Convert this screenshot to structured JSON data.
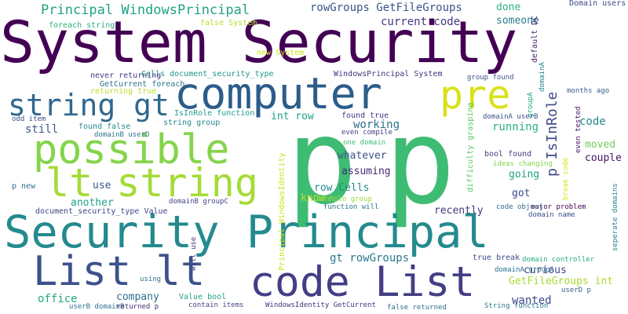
{
  "words": [
    {
      "text": "System Security",
      "color": "#440154"
    },
    {
      "text": "p",
      "color": "#3fbc73"
    },
    {
      "text": "p",
      "color": "#3fbc73"
    },
    {
      "text": "computer",
      "color": "#2c5c8b"
    },
    {
      "text": "pre",
      "color": "#d8e219"
    },
    {
      "text": "possible",
      "color": "#84d44b"
    },
    {
      "text": "string gt",
      "color": "#31688e"
    },
    {
      "text": "lt string",
      "color": "#a5db36"
    },
    {
      "text": "Security Principal",
      "color": "#238a8d"
    },
    {
      "text": "List lt",
      "color": "#3b528b"
    },
    {
      "text": "code List",
      "color": "#433e85"
    },
    {
      "text": "Principal WindowsPrincipal",
      "color": "#20a386"
    },
    {
      "text": "rowGroups GetFileGroups",
      "color": "#39568c"
    },
    {
      "text": "done",
      "color": "#2db27d"
    },
    {
      "text": "someone",
      "color": "#287d8e"
    },
    {
      "text": "current code",
      "color": "#453781"
    },
    {
      "text": "Domain users",
      "color": "#3e4a89"
    },
    {
      "text": "default DC",
      "color": "#482475"
    },
    {
      "text": "domainA",
      "color": "#25858e"
    },
    {
      "text": "foreach string",
      "color": "#2ab07f"
    },
    {
      "text": "false System",
      "color": "#b5de2b"
    },
    {
      "text": "new System",
      "color": "#d0e11c"
    },
    {
      "text": "Cells document_security_type",
      "color": "#1f968b"
    },
    {
      "text": "never returning",
      "color": "#443983"
    },
    {
      "text": "WindowsPrincipal System",
      "color": "#46327e"
    },
    {
      "text": "group found",
      "color": "#3b528b"
    },
    {
      "text": "GetCurrent foreach",
      "color": "#2a768e"
    },
    {
      "text": "returning true",
      "color": "#b8de29"
    },
    {
      "text": "months ago",
      "color": "#355f8d"
    },
    {
      "text": "groupA",
      "color": "#22a785"
    },
    {
      "text": "IsInRole function",
      "color": "#1f9e89"
    },
    {
      "text": "string group",
      "color": "#23898e"
    },
    {
      "text": "domainA userB",
      "color": "#3b528b"
    },
    {
      "text": "odd item",
      "color": "#3d4e8a"
    },
    {
      "text": "found true",
      "color": "#453882"
    },
    {
      "text": "int row",
      "color": "#1fa187"
    },
    {
      "text": "p IsInRole",
      "color": "#3e4989"
    },
    {
      "text": "code",
      "color": "#25858e"
    },
    {
      "text": "still",
      "color": "#39568c"
    },
    {
      "text": "found false",
      "color": "#23898e"
    },
    {
      "text": "working",
      "color": "#2e6f8e"
    },
    {
      "text": "running",
      "color": "#2db27d"
    },
    {
      "text": "domainB userD",
      "color": "#2c728e"
    },
    {
      "text": "even compile",
      "color": "#424086"
    },
    {
      "text": "difficulty grasping",
      "color": "#5ec962"
    },
    {
      "text": "even tested",
      "color": "#48186a"
    },
    {
      "text": "one domain",
      "color": "#3fbc73"
    },
    {
      "text": "moved",
      "color": "#6ece58"
    },
    {
      "text": "whatever",
      "color": "#3a548c"
    },
    {
      "text": "bool found",
      "color": "#424186"
    },
    {
      "text": "couple",
      "color": "#471164"
    },
    {
      "text": "break code",
      "color": "#d8e219"
    },
    {
      "text": "assuming",
      "color": "#482878"
    },
    {
      "text": "ideas changing",
      "color": "#84d44b"
    },
    {
      "text": "going",
      "color": "#1fa187"
    },
    {
      "text": "seperate domains",
      "color": "#26828e"
    },
    {
      "text": "p new",
      "color": "#2d708e"
    },
    {
      "text": "use",
      "color": "#3a548c"
    },
    {
      "text": "row Cells",
      "color": "#228c8d"
    },
    {
      "text": "know",
      "color": "#b5de2b"
    },
    {
      "text": "got",
      "color": "#3f4889"
    },
    {
      "text": "another",
      "color": "#1fa088"
    },
    {
      "text": "IsInRole group",
      "color": "#a0da39"
    },
    {
      "text": "function will",
      "color": "#2b758e"
    },
    {
      "text": "major problem",
      "color": "#440154"
    },
    {
      "text": "domainB groupC",
      "color": "#414487"
    },
    {
      "text": "recently",
      "color": "#453781"
    },
    {
      "text": "code object",
      "color": "#31688e"
    },
    {
      "text": "domain name",
      "color": "#3b528b"
    },
    {
      "text": "document_security_type Value",
      "color": "#414487"
    },
    {
      "text": "Principal WindowsIdentity",
      "color": "#d0e11c"
    },
    {
      "text": "gt rowGroups",
      "color": "#2a788e"
    },
    {
      "text": "true break",
      "color": "#3e4a89"
    },
    {
      "text": "domain controller",
      "color": "#25ab82"
    },
    {
      "text": "curious",
      "color": "#3e4989"
    },
    {
      "text": "domainA groupA",
      "color": "#2c728e"
    },
    {
      "text": "GetFileGroups int",
      "color": "#a8db34"
    },
    {
      "text": "will use",
      "color": "#46337f"
    },
    {
      "text": "office",
      "color": "#22a884"
    },
    {
      "text": "company",
      "color": "#2e6e8e"
    },
    {
      "text": "Value bool",
      "color": "#20a486"
    },
    {
      "text": "using",
      "color": "#2d708e"
    },
    {
      "text": "userD p",
      "color": "#355f8d"
    },
    {
      "text": "wanted",
      "color": "#3f4788"
    },
    {
      "text": "userB domainB",
      "color": "#2c738e"
    },
    {
      "text": "returned p",
      "color": "#472d7b"
    },
    {
      "text": "contain items",
      "color": "#404588"
    },
    {
      "text": "WindowsIdentity GetCurrent",
      "color": "#46307e"
    },
    {
      "text": "false returned",
      "color": "#2c728e"
    },
    {
      "text": "String function",
      "color": "#2a778e"
    }
  ]
}
